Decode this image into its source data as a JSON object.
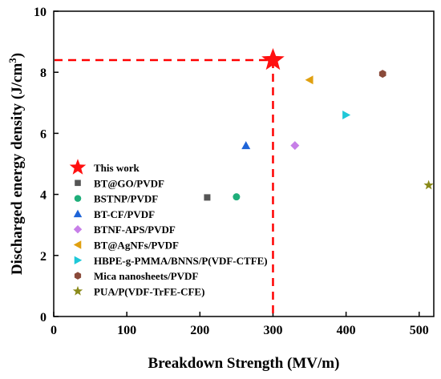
{
  "chart_data": {
    "type": "scatter",
    "xlabel": "Breakdown Strength (MV/m)",
    "ylabel_main": "Discharged energy density (J/cm",
    "ylabel_sup": "3",
    "ylabel_end": ")",
    "xlim": [
      0,
      520
    ],
    "ylim": [
      0,
      10
    ],
    "x_ticks": [
      "0",
      "100",
      "200",
      "300",
      "400",
      "500"
    ],
    "x_tick_values": [
      0,
      100,
      200,
      300,
      400,
      500
    ],
    "y_ticks": [
      "0",
      "2",
      "4",
      "6",
      "8",
      "10"
    ],
    "y_tick_values": [
      0,
      2,
      4,
      6,
      8,
      10
    ],
    "grid": false,
    "legend_position": "bottom-left",
    "highlight_lines": {
      "x": 300,
      "y": 8.4,
      "color": "#ff0000"
    },
    "series": [
      {
        "name": "This work",
        "marker": "star",
        "color": "#ff1010",
        "x": 300,
        "y": 8.4
      },
      {
        "name": "BT@GO/PVDF",
        "marker": "square",
        "color": "#555555",
        "x": 210,
        "y": 3.9
      },
      {
        "name": "BSTNP/PVDF",
        "marker": "circle",
        "color": "#1fae7a",
        "x": 250,
        "y": 3.92
      },
      {
        "name": "BT-CF/PVDF",
        "marker": "triangle-up",
        "color": "#1e64d8",
        "x": 263,
        "y": 5.6
      },
      {
        "name": "BTNF-APS/PVDF",
        "marker": "diamond",
        "color": "#c77fe8",
        "x": 330,
        "y": 5.6
      },
      {
        "name": "BT@AgNFs/PVDF",
        "marker": "triangle-left",
        "color": "#e0a010",
        "x": 350,
        "y": 7.75
      },
      {
        "name": "HBPE-g-PMMA/BNNS/P(VDF-CTFE)",
        "marker": "triangle-right",
        "color": "#1ec8d8",
        "x": 400,
        "y": 6.6
      },
      {
        "name": "Mica nanosheets/PVDF",
        "marker": "hexagon",
        "color": "#8a4a3a",
        "x": 450,
        "y": 7.95
      },
      {
        "name": "PUA/P(VDF-TrFE-CFE)",
        "marker": "star-small",
        "color": "#8a8a1a",
        "x": 513,
        "y": 4.3
      }
    ]
  }
}
